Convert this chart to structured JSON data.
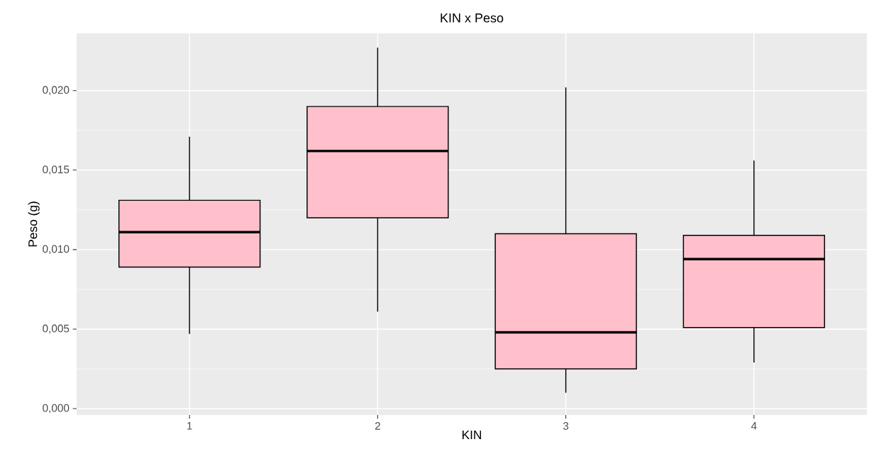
{
  "chart_data": {
    "type": "box",
    "title": "KIN x Peso",
    "xlabel": "KIN",
    "ylabel": "Peso (g)",
    "categories": [
      "1",
      "2",
      "3",
      "4"
    ],
    "color": "#ffc0cb",
    "boxes": [
      {
        "low": 0.0047,
        "q1": 0.0089,
        "median": 0.0111,
        "q3": 0.0131,
        "high": 0.0171
      },
      {
        "low": 0.0061,
        "q1": 0.012,
        "median": 0.0162,
        "q3": 0.019,
        "high": 0.0227
      },
      {
        "low": 0.001,
        "q1": 0.0025,
        "median": 0.0048,
        "q3": 0.011,
        "high": 0.0202
      },
      {
        "low": 0.0029,
        "q1": 0.0051,
        "median": 0.0094,
        "q3": 0.0109,
        "high": 0.0156
      }
    ],
    "ylim": [
      -0.0004,
      0.0236
    ],
    "yticks": [
      {
        "value": 0,
        "label": "0,000"
      },
      {
        "value": 0.005,
        "label": "0,005"
      },
      {
        "value": 0.01,
        "label": "0,010"
      },
      {
        "value": 0.015,
        "label": "0,015"
      },
      {
        "value": 0.02,
        "label": "0,020"
      }
    ],
    "grid": true
  }
}
